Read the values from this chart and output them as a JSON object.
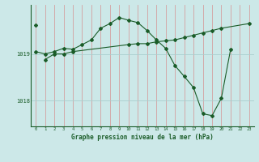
{
  "title": "Graphe pression niveau de la mer (hPa)",
  "bg_color": "#cce8e8",
  "line_color": "#1a5c28",
  "grid_color_v": "#d4a0a0",
  "grid_color_h": "#aacece",
  "xlim": [
    -0.5,
    23.5
  ],
  "ylim": [
    1017.45,
    1020.05
  ],
  "yticks": [
    1018,
    1019
  ],
  "xticks": [
    0,
    1,
    2,
    3,
    4,
    5,
    6,
    7,
    8,
    9,
    10,
    11,
    12,
    13,
    14,
    15,
    16,
    17,
    18,
    19,
    20,
    21,
    22,
    23
  ],
  "series1_x": [
    0,
    1,
    2,
    3,
    4,
    5,
    6,
    7,
    8,
    9,
    10,
    11,
    12,
    13,
    14,
    15,
    16,
    17,
    18,
    19,
    20,
    21
  ],
  "series1_y": [
    1019.05,
    1019.0,
    1019.05,
    1019.12,
    1019.1,
    1019.2,
    1019.3,
    1019.55,
    1019.65,
    1019.78,
    1019.72,
    1019.67,
    1019.5,
    1019.3,
    1019.12,
    1018.75,
    1018.52,
    1018.28,
    1017.72,
    1017.68,
    1018.05,
    1019.1
  ],
  "series2_x": [
    1,
    2,
    3,
    4,
    10,
    11,
    12,
    13,
    14,
    15,
    16,
    17,
    18,
    19,
    20,
    23
  ],
  "series2_y": [
    1018.88,
    1019.0,
    1019.0,
    1019.05,
    1019.2,
    1019.22,
    1019.22,
    1019.26,
    1019.28,
    1019.3,
    1019.35,
    1019.4,
    1019.45,
    1019.5,
    1019.55,
    1019.65
  ],
  "series3_x": [
    0
  ],
  "series3_y": [
    1019.62
  ]
}
